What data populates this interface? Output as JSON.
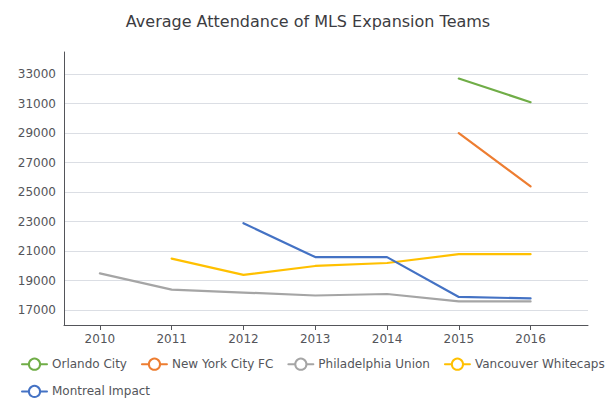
{
  "chart_data": {
    "type": "line",
    "title": "Average Attendance of MLS Expansion Teams",
    "series": [
      {
        "name": "Orlando City",
        "color": "#70ad47",
        "x": [
          2015,
          2016
        ],
        "values": [
          32700,
          31100
        ]
      },
      {
        "name": "New York City FC",
        "color": "#ed7d31",
        "x": [
          2015,
          2016
        ],
        "values": [
          29000,
          25400
        ]
      },
      {
        "name": "Philadelphia Union",
        "color": "#a5a5a5",
        "x": [
          2010,
          2011,
          2012,
          2013,
          2014,
          2015,
          2016
        ],
        "values": [
          19500,
          18400,
          18200,
          18000,
          18100,
          17600,
          17600
        ]
      },
      {
        "name": "Vancouver Whitecaps",
        "color": "#ffc000",
        "x": [
          2011,
          2012,
          2013,
          2014,
          2015,
          2016
        ],
        "values": [
          20500,
          19400,
          20000,
          20200,
          20800,
          20800
        ]
      },
      {
        "name": "Montreal Impact",
        "color": "#4472c4",
        "x": [
          2012,
          2013,
          2014,
          2015,
          2016
        ],
        "values": [
          22900,
          20600,
          20600,
          17900,
          17800
        ]
      }
    ],
    "xlim": [
      2009.5,
      2016.8
    ],
    "xticks": [
      2010,
      2011,
      2012,
      2013,
      2014,
      2015,
      2016
    ],
    "ylim": [
      16000,
      34500
    ],
    "yticks": [
      17000,
      19000,
      21000,
      23000,
      25000,
      27000,
      29000,
      31000,
      33000
    ],
    "grid": "y",
    "legend": "lower left"
  }
}
